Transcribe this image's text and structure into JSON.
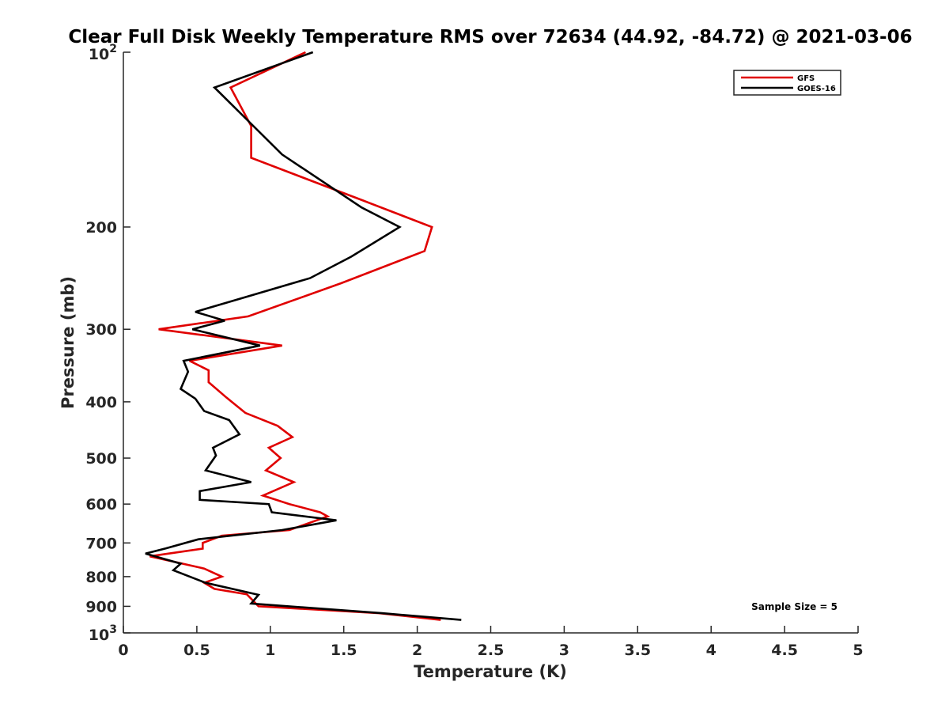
{
  "chart_data": {
    "type": "line",
    "title": "Clear Full Disk Weekly Temperature RMS over 72634 (44.92, -84.72) @ 2021-03-06",
    "xlabel": "Temperature (K)",
    "ylabel": "Pressure (mb)",
    "xlim": [
      0,
      5
    ],
    "ylim": [
      100,
      1000
    ],
    "y_scale": "log",
    "y_reversed": true,
    "grid": false,
    "legend_position": "top-right",
    "x_ticks": [
      {
        "value": 0,
        "label": "0"
      },
      {
        "value": 0.5,
        "label": "0.5"
      },
      {
        "value": 1,
        "label": "1"
      },
      {
        "value": 1.5,
        "label": "1.5"
      },
      {
        "value": 2,
        "label": "2"
      },
      {
        "value": 2.5,
        "label": "2.5"
      },
      {
        "value": 3,
        "label": "3"
      },
      {
        "value": 3.5,
        "label": "3.5"
      },
      {
        "value": 4,
        "label": "4"
      },
      {
        "value": 4.5,
        "label": "4.5"
      },
      {
        "value": 5,
        "label": "5"
      }
    ],
    "y_ticks": [
      {
        "value": 100,
        "base": "10",
        "exp": "2"
      },
      {
        "value": 200,
        "label": "200"
      },
      {
        "value": 300,
        "label": "300"
      },
      {
        "value": 400,
        "label": "400"
      },
      {
        "value": 500,
        "label": "500"
      },
      {
        "value": 600,
        "label": "600"
      },
      {
        "value": 700,
        "label": "700"
      },
      {
        "value": 800,
        "label": "800"
      },
      {
        "value": 900,
        "label": "900"
      },
      {
        "value": 1000,
        "base": "10",
        "exp": "3"
      }
    ],
    "series": [
      {
        "name": "GFS",
        "color": "#e00000",
        "points": [
          [
            1.24,
            100
          ],
          [
            0.73,
            115
          ],
          [
            0.87,
            134
          ],
          [
            0.87,
            152
          ],
          [
            1.63,
            180
          ],
          [
            2.1,
            200
          ],
          [
            2.05,
            220
          ],
          [
            1.48,
            250
          ],
          [
            0.85,
            285
          ],
          [
            0.24,
            300
          ],
          [
            1.08,
            320
          ],
          [
            0.45,
            340
          ],
          [
            0.58,
            353
          ],
          [
            0.58,
            370
          ],
          [
            0.7,
            393
          ],
          [
            0.83,
            418
          ],
          [
            1.05,
            440
          ],
          [
            1.15,
            460
          ],
          [
            0.99,
            480
          ],
          [
            1.07,
            500
          ],
          [
            0.97,
            525
          ],
          [
            1.16,
            550
          ],
          [
            0.95,
            580
          ],
          [
            1.13,
            600
          ],
          [
            1.34,
            620
          ],
          [
            1.39,
            630
          ],
          [
            1.13,
            665
          ],
          [
            0.67,
            680
          ],
          [
            0.54,
            700
          ],
          [
            0.54,
            716
          ],
          [
            0.18,
            738
          ],
          [
            0.55,
            775
          ],
          [
            0.67,
            800
          ],
          [
            0.55,
            820
          ],
          [
            0.62,
            840
          ],
          [
            0.84,
            858
          ],
          [
            0.92,
            900
          ],
          [
            1.74,
            925
          ],
          [
            2.16,
            950
          ]
        ]
      },
      {
        "name": "GOES-16",
        "color": "#000000",
        "points": [
          [
            1.29,
            100
          ],
          [
            0.62,
            115
          ],
          [
            1.08,
            150
          ],
          [
            1.62,
            185
          ],
          [
            1.88,
            200
          ],
          [
            1.55,
            225
          ],
          [
            1.27,
            245
          ],
          [
            0.49,
            280
          ],
          [
            0.69,
            290
          ],
          [
            0.47,
            300
          ],
          [
            0.93,
            320
          ],
          [
            0.41,
            340
          ],
          [
            0.44,
            355
          ],
          [
            0.39,
            380
          ],
          [
            0.49,
            395
          ],
          [
            0.55,
            415
          ],
          [
            0.72,
            430
          ],
          [
            0.79,
            455
          ],
          [
            0.61,
            480
          ],
          [
            0.63,
            495
          ],
          [
            0.56,
            525
          ],
          [
            0.87,
            550
          ],
          [
            0.52,
            570
          ],
          [
            0.52,
            590
          ],
          [
            0.99,
            600
          ],
          [
            1.01,
            620
          ],
          [
            1.45,
            640
          ],
          [
            1.08,
            665
          ],
          [
            0.51,
            690
          ],
          [
            0.29,
            715
          ],
          [
            0.15,
            730
          ],
          [
            0.39,
            760
          ],
          [
            0.34,
            780
          ],
          [
            0.56,
            820
          ],
          [
            0.92,
            860
          ],
          [
            0.87,
            890
          ],
          [
            1.76,
            925
          ],
          [
            2.3,
            950
          ]
        ]
      }
    ],
    "annotations": [
      {
        "text": "Sample Size = 5"
      }
    ]
  }
}
